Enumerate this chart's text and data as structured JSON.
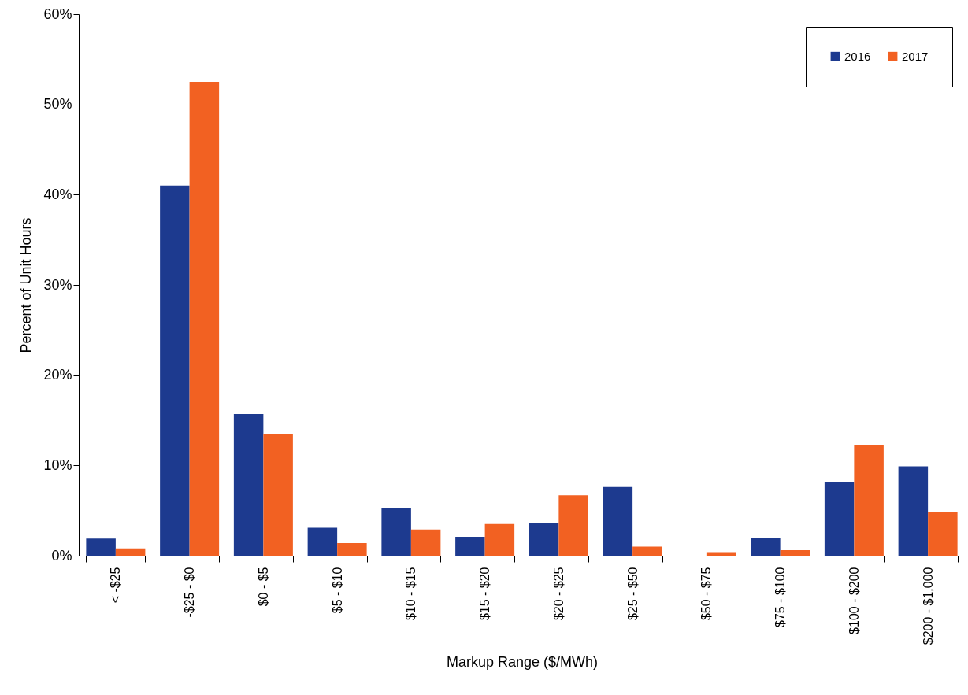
{
  "chart_data": {
    "type": "bar",
    "xlabel": "Markup Range ($/MWh)",
    "ylabel": "Percent of Unit Hours",
    "categories": [
      "< -$25",
      "-$25 - $0",
      "$0 - $5",
      "$5 - $10",
      "$10 - $15",
      "$15 - $20",
      "$20 - $25",
      "$25 - $50",
      "$50 - $75",
      "$75 - $100",
      "$100 - $200",
      "$200 - $1,000"
    ],
    "series": [
      {
        "name": "2016",
        "color": "#1d3a8f",
        "values": [
          1.9,
          41.0,
          15.7,
          3.1,
          5.3,
          2.1,
          3.6,
          7.6,
          0,
          2.0,
          8.1,
          9.9
        ]
      },
      {
        "name": "2017",
        "color": "#f26122",
        "values": [
          0.8,
          52.5,
          13.5,
          1.4,
          2.9,
          3.5,
          6.7,
          1.0,
          0.4,
          0.6,
          12.2,
          4.8
        ]
      }
    ],
    "ylim": [
      0,
      60
    ],
    "yticks": [
      {
        "value": 0,
        "label": "0%"
      },
      {
        "value": 10,
        "label": "10%"
      },
      {
        "value": 20,
        "label": "20%"
      },
      {
        "value": 30,
        "label": "30%"
      },
      {
        "value": 40,
        "label": "40%"
      },
      {
        "value": 50,
        "label": "50%"
      },
      {
        "value": 60,
        "label": "60%"
      }
    ],
    "grid": false,
    "legend": "top right"
  }
}
